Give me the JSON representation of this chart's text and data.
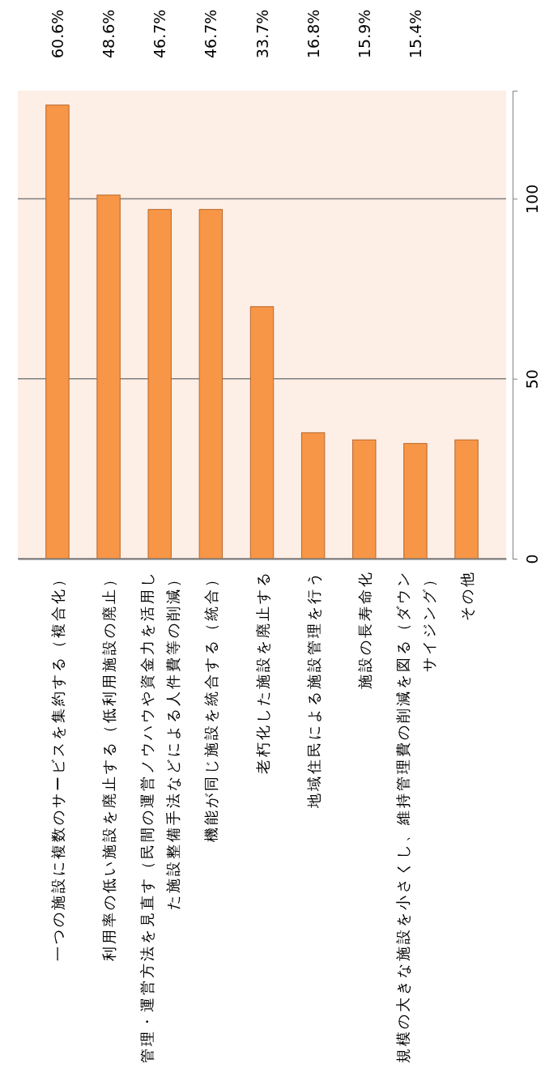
{
  "chart_data": {
    "type": "bar",
    "categories": [
      "一つの施設に複数のサービスを集約する（複合化）",
      "利用率の低い施設を廃止する（低利用施設の廃止）",
      "管理・運営方法を見直す（民間の運営ノウハウや資金力を活用した施設整備手法などによる人件費等の削減）",
      "機能が同じ施設を統合する（統合）",
      "老朽化した施設を廃止する",
      "地域住民による施設管理を行う",
      "施設の長寿命化",
      "規模の大きな施設を小さくし、維持管理費の削減を図る（ダウンサイジング）",
      "その他"
    ],
    "values": [
      126,
      101,
      97,
      97,
      70,
      35,
      33,
      32,
      33
    ],
    "annotations": [
      "60.6%",
      "48.6%",
      "46.7%",
      "46.7%",
      "33.7%",
      "16.8%",
      "15.9%",
      "15.4%"
    ],
    "color": "#f79646",
    "ylim": [
      0,
      130
    ],
    "yticks": [
      0,
      50,
      100
    ],
    "grid": "y"
  }
}
